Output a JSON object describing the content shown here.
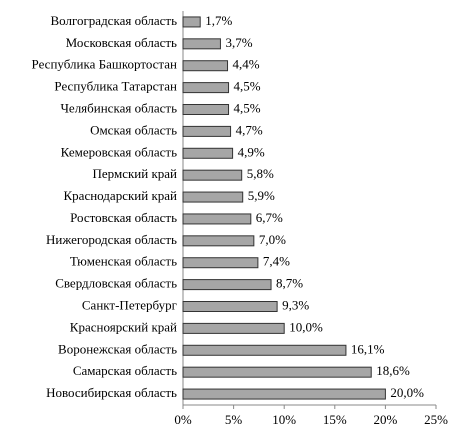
{
  "chart_data": {
    "type": "bar",
    "orientation": "horizontal",
    "categories": [
      "Волгоградская область",
      "Московская область",
      "Республика Башкортостан",
      "Республика Татарстан",
      "Челябинская область",
      "Омская область",
      "Кемеровская область",
      "Пермский край",
      "Краснодарский край",
      "Ростовская область",
      "Нижегородская область",
      "Тюменская область",
      "Свердловская область",
      "Санкт-Петербург",
      "Красноярский край",
      "Воронежская область",
      "Самарская область",
      "Новосибирская область"
    ],
    "values": [
      1.7,
      3.7,
      4.4,
      4.5,
      4.5,
      4.7,
      4.9,
      5.8,
      5.9,
      6.7,
      7.0,
      7.4,
      8.7,
      9.3,
      10.0,
      16.1,
      18.6,
      20.0
    ],
    "value_labels": [
      "1,7%",
      "3,7%",
      "4,4%",
      "4,5%",
      "4,5%",
      "4,7%",
      "4,9%",
      "5,8%",
      "5,9%",
      "6,7%",
      "7,0%",
      "7,4%",
      "8,7%",
      "9,3%",
      "10,0%",
      "16,1%",
      "18,6%",
      "20,0%"
    ],
    "color": "#a6a6a6",
    "xlim": [
      0,
      25
    ],
    "xticks": [
      {
        "value": 0,
        "label": "0%"
      },
      {
        "value": 5,
        "label": "5%"
      },
      {
        "value": 10,
        "label": "10%"
      },
      {
        "value": 15,
        "label": "15%"
      },
      {
        "value": 20,
        "label": "20%"
      },
      {
        "value": 25,
        "label": "25%"
      }
    ]
  }
}
